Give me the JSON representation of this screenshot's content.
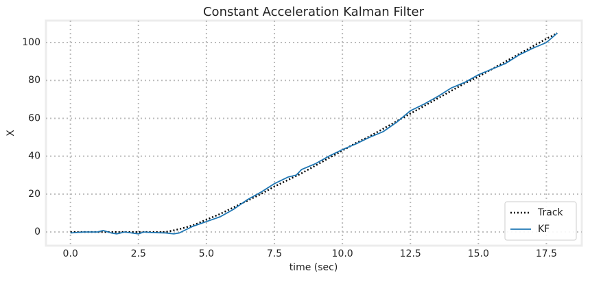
{
  "chart_data": {
    "type": "line",
    "title": "Constant Acceleration Kalman Filter",
    "xlabel": "time (sec)",
    "ylabel": "X",
    "xlim": [
      -0.9,
      18.8
    ],
    "ylim": [
      -7.2,
      111.6
    ],
    "xticks": [
      {
        "value": 0,
        "label": "0.0"
      },
      2.5,
      {
        "value": 5,
        "label": "5.0"
      },
      7.5,
      {
        "value": 10,
        "label": "10.0"
      },
      12.5,
      {
        "value": 15,
        "label": "15.0"
      },
      17.5
    ],
    "yticks": [
      0,
      20,
      40,
      60,
      80,
      100
    ],
    "grid": true,
    "legend": "lower right",
    "series": [
      {
        "name": "Track",
        "color": "#000000",
        "dash": "dotted",
        "x": [
          0,
          0.5,
          1,
          1.5,
          2,
          2.5,
          3,
          3.5,
          4,
          4.5,
          5,
          5.5,
          6,
          6.5,
          7,
          7.5,
          8,
          8.5,
          9,
          9.5,
          10,
          10.5,
          11,
          11.5,
          12,
          12.5,
          13,
          13.5,
          14,
          14.5,
          15,
          15.5,
          16,
          16.5,
          17,
          17.5,
          17.9
        ],
        "values": [
          0,
          0,
          0,
          0,
          0,
          0,
          0,
          0,
          1.5,
          3.5,
          6.5,
          9.5,
          13,
          16.5,
          20,
          24,
          27.5,
          31,
          35,
          39,
          43,
          47,
          50.5,
          54.5,
          58.5,
          62.5,
          66.5,
          70.5,
          74.5,
          78.5,
          82,
          86,
          90,
          94,
          98,
          102,
          105
        ]
      },
      {
        "name": "KF",
        "color": "#1f77b4",
        "dash": "solid",
        "x": [
          0,
          0.5,
          1,
          1.2,
          1.5,
          1.7,
          2,
          2.5,
          2.7,
          3,
          3.5,
          3.8,
          4,
          4.5,
          5,
          5.5,
          6,
          6.5,
          7,
          7.5,
          8,
          8.3,
          8.5,
          9,
          9.5,
          10,
          10.5,
          11,
          11.5,
          12,
          12.5,
          13,
          13.5,
          14,
          14.5,
          15,
          15.5,
          16,
          16.5,
          17,
          17.5,
          17.9
        ],
        "values": [
          -0.5,
          0,
          0,
          0.8,
          -0.5,
          -1,
          0,
          -1,
          0,
          -0.3,
          -0.5,
          -1,
          -0.5,
          3,
          5.5,
          8,
          12,
          17,
          21,
          25.5,
          29,
          30,
          33,
          36,
          40,
          43.5,
          46.5,
          50,
          53,
          58,
          64,
          67.5,
          71.5,
          76,
          79,
          83,
          86,
          89,
          93.5,
          97,
          100,
          105
        ]
      }
    ]
  }
}
